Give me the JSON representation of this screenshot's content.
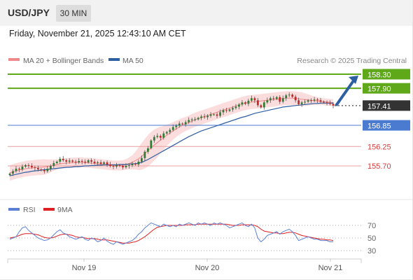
{
  "header": {
    "pair": "USD/JPY",
    "timeframe": "30 MIN"
  },
  "timestamp": "Friday, November 21, 2025 12:43:10 AM CET",
  "credit": "Research © 2025 Trading Central",
  "legend": [
    {
      "name": "MA 20 + Bollinger Bands",
      "color": "#f08a8a"
    },
    {
      "name": "MA 50",
      "color": "#2d5fa3"
    }
  ],
  "chart_data": [
    {
      "type": "line",
      "x_ticks": [
        "Nov 19",
        "Nov 20",
        "Nov 21"
      ],
      "ylim": [
        155.3,
        158.5
      ],
      "levels": [
        {
          "value": "158.30",
          "color": "#5ea81a",
          "kind": "resistance",
          "label_style": "box"
        },
        {
          "value": "157.90",
          "color": "#5ea81a",
          "kind": "resistance",
          "label_style": "box"
        },
        {
          "value": "157.41",
          "color": "#333333",
          "kind": "current",
          "label_style": "box"
        },
        {
          "value": "156.85",
          "color": "#4a7bd1",
          "kind": "pivot",
          "label_style": "box"
        },
        {
          "value": "156.25",
          "color": "#d65a5a",
          "kind": "support",
          "label_style": "text"
        },
        {
          "value": "155.70",
          "color": "#d65a5a",
          "kind": "support",
          "label_style": "text"
        }
      ],
      "projection": {
        "from": 157.41,
        "to": 158.3,
        "color": "#2d5fa3"
      },
      "closes": [
        155.48,
        155.55,
        155.62,
        155.6,
        155.68,
        155.72,
        155.7,
        155.66,
        155.64,
        155.6,
        155.58,
        155.55,
        155.62,
        155.7,
        155.78,
        155.82,
        155.9,
        155.86,
        155.82,
        155.85,
        155.82,
        155.8,
        155.84,
        155.82,
        155.8,
        155.86,
        155.82,
        155.78,
        155.8,
        155.76,
        155.8,
        155.74,
        155.7,
        155.68,
        155.72,
        155.7,
        155.66,
        155.7,
        155.72,
        155.76,
        155.74,
        155.82,
        155.92,
        156.1,
        156.2,
        156.42,
        156.52,
        156.55,
        156.5,
        156.62,
        156.66,
        156.72,
        156.8,
        156.84,
        156.9,
        156.88,
        156.94,
        157.0,
        157.02,
        157.02,
        157.06,
        157.1,
        157.08,
        157.12,
        157.16,
        157.16,
        157.12,
        157.22,
        157.28,
        157.26,
        157.3,
        157.34,
        157.38,
        157.44,
        157.5,
        157.46,
        157.55,
        157.62,
        157.56,
        157.42,
        157.36,
        157.5,
        157.56,
        157.62,
        157.6,
        157.65,
        157.52,
        157.62,
        157.7,
        157.72,
        157.66,
        157.56,
        157.45,
        157.5,
        157.52,
        157.56,
        157.55,
        157.58,
        157.56,
        157.52,
        157.5,
        157.48,
        157.46,
        157.41
      ],
      "ma50": [
        155.42,
        155.44,
        155.46,
        155.48,
        155.5,
        155.52,
        155.53,
        155.55,
        155.56,
        155.57,
        155.58,
        155.59,
        155.6,
        155.61,
        155.62,
        155.63,
        155.64,
        155.65,
        155.66,
        155.66,
        155.67,
        155.68,
        155.68,
        155.69,
        155.7,
        155.7,
        155.71,
        155.71,
        155.72,
        155.72,
        155.73,
        155.73,
        155.73,
        155.73,
        155.73,
        155.74,
        155.74,
        155.74,
        155.75,
        155.76,
        155.76,
        155.78,
        155.8,
        155.84,
        155.88,
        155.93,
        155.98,
        156.03,
        156.08,
        156.13,
        156.18,
        156.23,
        156.28,
        156.33,
        156.38,
        156.43,
        156.48,
        156.53,
        156.57,
        156.61,
        156.65,
        156.69,
        156.72,
        156.75,
        156.78,
        156.81,
        156.84,
        156.87,
        156.9,
        156.93,
        156.96,
        156.99,
        157.02,
        157.05,
        157.08,
        157.1,
        157.13,
        157.16,
        157.19,
        157.21,
        157.23,
        157.25,
        157.27,
        157.29,
        157.31,
        157.33,
        157.35,
        157.37,
        157.38,
        157.39,
        157.4,
        157.41,
        157.42,
        157.43,
        157.44,
        157.45,
        157.46,
        157.47,
        157.47,
        157.48,
        157.48,
        157.48,
        157.48,
        157.48
      ],
      "ma20": [
        155.5,
        155.53,
        155.56,
        155.58,
        155.6,
        155.62,
        155.63,
        155.64,
        155.65,
        155.66,
        155.66,
        155.67,
        155.68,
        155.7,
        155.72,
        155.74,
        155.76,
        155.77,
        155.78,
        155.79,
        155.79,
        155.8,
        155.8,
        155.8,
        155.79,
        155.79,
        155.78,
        155.77,
        155.76,
        155.75,
        155.74,
        155.73,
        155.72,
        155.71,
        155.71,
        155.71,
        155.72,
        155.74,
        155.77,
        155.8,
        155.85,
        155.9,
        155.97,
        156.05,
        156.13,
        156.21,
        156.29,
        156.36,
        156.43,
        156.5,
        156.57,
        156.63,
        156.69,
        156.75,
        156.8,
        156.85,
        156.89,
        156.93,
        156.97,
        157.01,
        157.04,
        157.07,
        157.1,
        157.13,
        157.16,
        157.19,
        157.22,
        157.25,
        157.28,
        157.31,
        157.34,
        157.37,
        157.4,
        157.43,
        157.46,
        157.48,
        157.5,
        157.51,
        157.52,
        157.53,
        157.54,
        157.55,
        157.56,
        157.57,
        157.58,
        157.59,
        157.6,
        157.61,
        157.62,
        157.62,
        157.62,
        157.61,
        157.6,
        157.59,
        157.58,
        157.57,
        157.56,
        157.55,
        157.54,
        157.53,
        157.52,
        157.51,
        157.5,
        157.49
      ],
      "band_width": [
        0.22,
        0.22,
        0.22,
        0.22,
        0.22,
        0.22,
        0.22,
        0.22,
        0.22,
        0.22,
        0.22,
        0.22,
        0.2,
        0.18,
        0.16,
        0.15,
        0.14,
        0.14,
        0.14,
        0.14,
        0.14,
        0.14,
        0.14,
        0.14,
        0.14,
        0.14,
        0.14,
        0.14,
        0.14,
        0.14,
        0.14,
        0.14,
        0.14,
        0.14,
        0.14,
        0.14,
        0.14,
        0.15,
        0.17,
        0.2,
        0.25,
        0.32,
        0.38,
        0.42,
        0.45,
        0.45,
        0.44,
        0.42,
        0.38,
        0.34,
        0.3,
        0.27,
        0.25,
        0.23,
        0.22,
        0.21,
        0.2,
        0.2,
        0.2,
        0.2,
        0.2,
        0.2,
        0.2,
        0.2,
        0.2,
        0.2,
        0.2,
        0.2,
        0.2,
        0.2,
        0.2,
        0.2,
        0.2,
        0.2,
        0.2,
        0.2,
        0.2,
        0.2,
        0.2,
        0.2,
        0.2,
        0.2,
        0.2,
        0.2,
        0.2,
        0.2,
        0.2,
        0.2,
        0.2,
        0.2,
        0.2,
        0.2,
        0.2,
        0.2,
        0.18,
        0.16,
        0.14,
        0.12,
        0.11,
        0.1,
        0.1,
        0.1,
        0.1,
        0.1
      ]
    },
    {
      "type": "line",
      "legend": [
        {
          "name": "RSI",
          "color": "#5b7fd4"
        },
        {
          "name": "9MA",
          "color": "#e02020"
        }
      ],
      "y_ticks": [
        "70",
        "50",
        "30"
      ],
      "ylim": [
        20,
        80
      ],
      "rsi": [
        48,
        50,
        52,
        60,
        66,
        68,
        62,
        58,
        54,
        50,
        48,
        46,
        47,
        50,
        55,
        60,
        63,
        58,
        56,
        52,
        50,
        48,
        50,
        52,
        48,
        46,
        50,
        48,
        44,
        46,
        50,
        45,
        42,
        40,
        44,
        42,
        40,
        42,
        44,
        46,
        50,
        56,
        60,
        66,
        70,
        74,
        72,
        70,
        68,
        72,
        70,
        68,
        70,
        68,
        72,
        70,
        72,
        74,
        72,
        70,
        74,
        72,
        74,
        72,
        70,
        74,
        72,
        74,
        72,
        70,
        66,
        68,
        70,
        72,
        74,
        70,
        68,
        72,
        66,
        50,
        44,
        48,
        54,
        56,
        58,
        60,
        56,
        60,
        62,
        64,
        60,
        54,
        46,
        48,
        50,
        52,
        50,
        48,
        48,
        46,
        46,
        46,
        44,
        44
      ],
      "ma9": [
        50,
        51,
        52,
        54,
        56,
        57,
        57,
        57,
        56,
        55,
        53,
        51,
        50,
        50,
        51,
        53,
        55,
        56,
        56,
        55,
        54,
        52,
        51,
        51,
        50,
        49,
        49,
        49,
        48,
        47,
        47,
        47,
        46,
        45,
        44,
        43,
        42,
        42,
        42,
        43,
        44,
        46,
        49,
        52,
        56,
        60,
        64,
        67,
        68,
        69,
        70,
        70,
        70,
        70,
        70,
        70,
        71,
        71,
        71,
        71,
        72,
        72,
        72,
        72,
        72,
        72,
        72,
        72,
        72,
        72,
        71,
        70,
        70,
        70,
        71,
        71,
        71,
        71,
        70,
        68,
        64,
        61,
        60,
        59,
        58,
        58,
        57,
        57,
        58,
        59,
        59,
        58,
        56,
        54,
        53,
        52,
        51,
        50,
        49,
        48,
        48,
        47,
        47,
        46
      ]
    }
  ]
}
